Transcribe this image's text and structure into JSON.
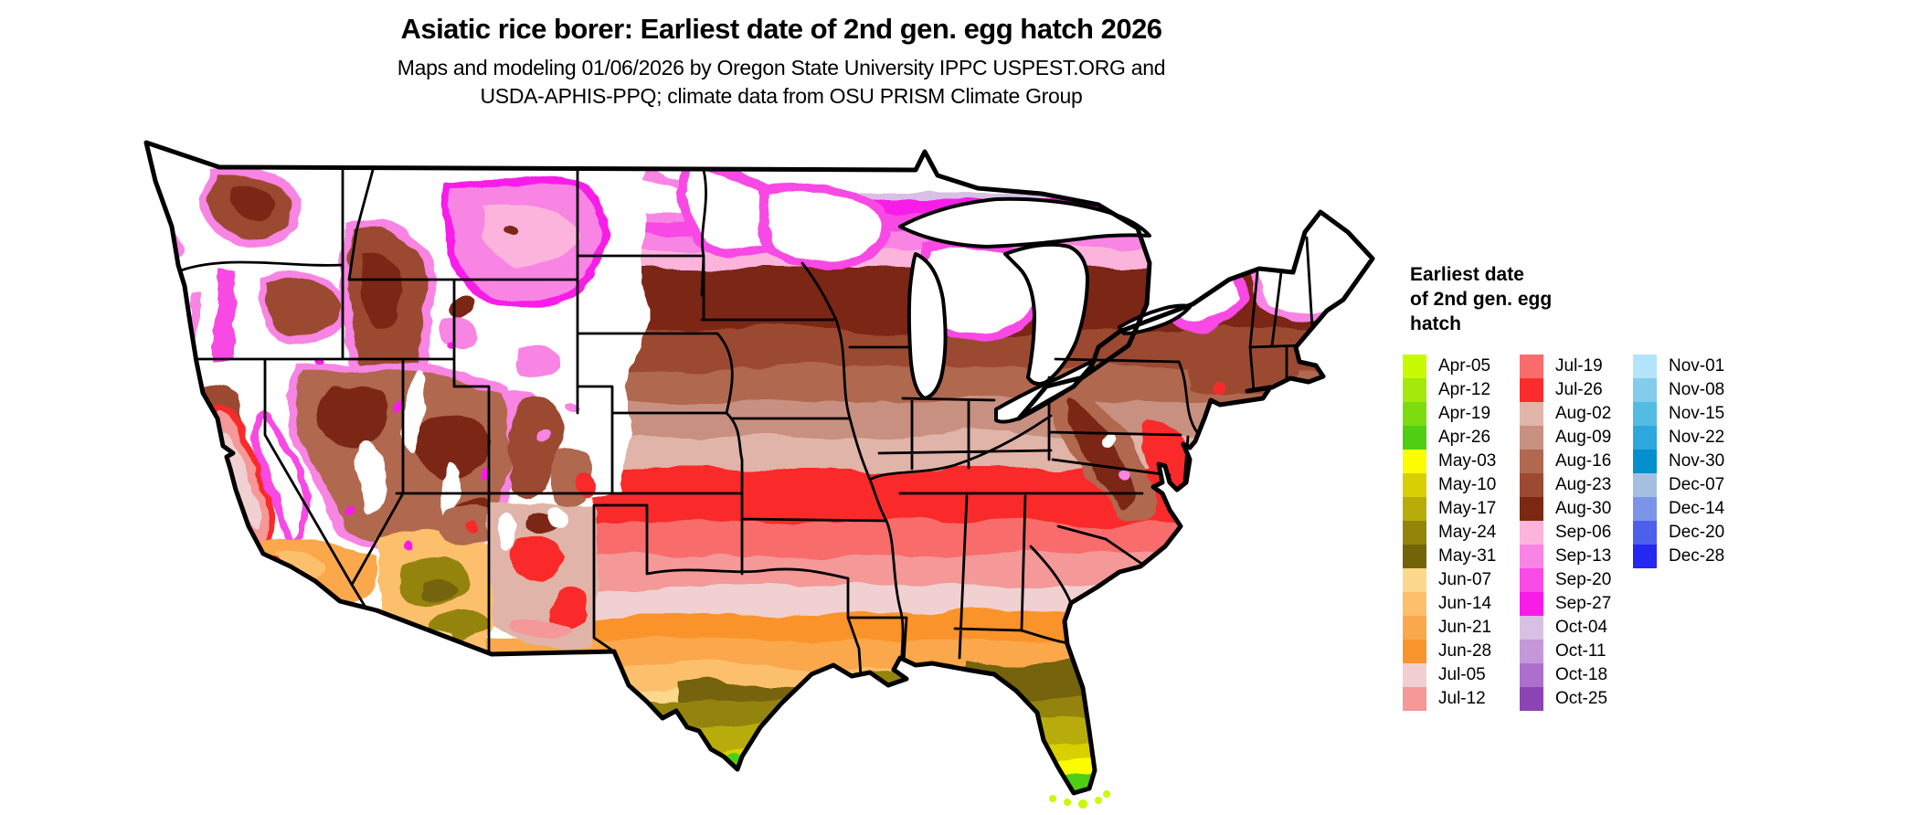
{
  "title": "Asiatic rice borer: Earliest date of 2nd gen. egg hatch 2026",
  "subtitle_line1": "Maps and modeling 01/06/2026 by Oregon State University IPPC USPEST.ORG and",
  "subtitle_line2": "USDA-APHIS-PPQ; climate data from OSU PRISM Climate Group",
  "map": {
    "region": "Continental United States",
    "no_data_color": "#ffffff",
    "state_border_color": "#000000",
    "water_color": "#ffffff"
  },
  "legend": {
    "title_lines": [
      "Earliest date",
      "of 2nd gen. egg",
      "hatch"
    ],
    "columns": [
      {
        "items": [
          {
            "label": "Apr-05",
            "color": "#c8fa04"
          },
          {
            "label": "Apr-12",
            "color": "#a4e80c"
          },
          {
            "label": "Apr-19",
            "color": "#7cdc10"
          },
          {
            "label": "Apr-26",
            "color": "#50ce14"
          },
          {
            "label": "May-03",
            "color": "#fcfc04"
          },
          {
            "label": "May-10",
            "color": "#d8d004"
          },
          {
            "label": "May-17",
            "color": "#b8ac08"
          },
          {
            "label": "May-24",
            "color": "#948408"
          },
          {
            "label": "May-31",
            "color": "#746408"
          },
          {
            "label": "Jun-07",
            "color": "#fcd88c"
          },
          {
            "label": "Jun-14",
            "color": "#fcc06c"
          },
          {
            "label": "Jun-21",
            "color": "#faa84c"
          },
          {
            "label": "Jun-28",
            "color": "#fa942c"
          },
          {
            "label": "Jul-05",
            "color": "#f0d0d0"
          },
          {
            "label": "Jul-12",
            "color": "#f49898"
          }
        ]
      },
      {
        "items": [
          {
            "label": "Jul-19",
            "color": "#f86c6c"
          },
          {
            "label": "Jul-26",
            "color": "#fa2c2c"
          },
          {
            "label": "Aug-02",
            "color": "#e0b4a8"
          },
          {
            "label": "Aug-09",
            "color": "#c89080"
          },
          {
            "label": "Aug-16",
            "color": "#b06850"
          },
          {
            "label": "Aug-23",
            "color": "#9c4a32"
          },
          {
            "label": "Aug-30",
            "color": "#7c2812"
          },
          {
            "label": "Sep-06",
            "color": "#fcb4dc"
          },
          {
            "label": "Sep-13",
            "color": "#f884e4"
          },
          {
            "label": "Sep-20",
            "color": "#f84ae4"
          },
          {
            "label": "Sep-27",
            "color": "#f81ce8"
          },
          {
            "label": "Oct-04",
            "color": "#d8c0e4"
          },
          {
            "label": "Oct-11",
            "color": "#c498d8"
          },
          {
            "label": "Oct-18",
            "color": "#ac70cc"
          },
          {
            "label": "Oct-25",
            "color": "#8c44b4"
          }
        ]
      },
      {
        "items": [
          {
            "label": "Nov-01",
            "color": "#b4e4fa"
          },
          {
            "label": "Nov-08",
            "color": "#84ccec"
          },
          {
            "label": "Nov-15",
            "color": "#54bce4"
          },
          {
            "label": "Nov-22",
            "color": "#2ca8dc"
          },
          {
            "label": "Nov-30",
            "color": "#0490cc"
          },
          {
            "label": "Dec-07",
            "color": "#a4c0e0"
          },
          {
            "label": "Dec-14",
            "color": "#7c94e8"
          },
          {
            "label": "Dec-20",
            "color": "#4c60ec"
          },
          {
            "label": "Dec-28",
            "color": "#2428f0"
          }
        ]
      }
    ]
  }
}
